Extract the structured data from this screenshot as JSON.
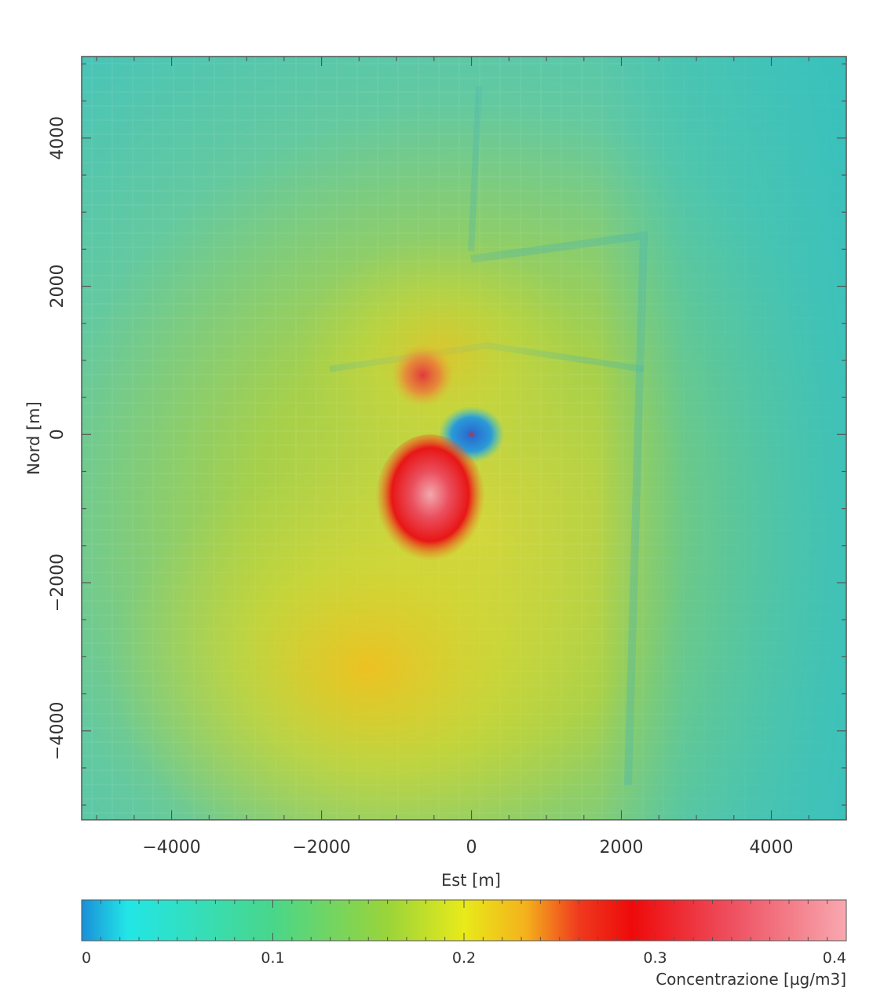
{
  "chart_data": {
    "type": "heatmap",
    "title": "",
    "xlabel": "Est [m]",
    "ylabel": "Nord [m]",
    "xlim": [
      -5200,
      5000
    ],
    "ylim": [
      -5200,
      5100
    ],
    "x_ticks": [
      -4000,
      -2000,
      0,
      2000,
      4000
    ],
    "x_tick_labels": [
      "−4000",
      "−2000",
      "0",
      "2000",
      "4000"
    ],
    "y_ticks": [
      -4000,
      -2000,
      0,
      2000,
      4000
    ],
    "y_tick_labels": [
      "−4000",
      "−2000",
      "0",
      "2000",
      "4000"
    ],
    "background": "aerial satellite photo of coastal industrial area with lagoon to the east",
    "colorbar": {
      "title": "Concentrazione [µg/m3]",
      "range": [
        0,
        0.4
      ],
      "ticks": [
        0,
        0.1,
        0.2,
        0.3,
        0.4
      ],
      "tick_labels": [
        "0",
        "0.1",
        "0.2",
        "0.3",
        "0.4"
      ],
      "colors": [
        "#1a8fd8",
        "#22e6e6",
        "#49d68a",
        "#9ad43a",
        "#e8ea1a",
        "#f4b21c",
        "#ef3a1e",
        "#ee0a0a",
        "#ee5060",
        "#f8a8b0"
      ]
    },
    "features": [
      {
        "name": "source minimum",
        "x": 0,
        "y": 0,
        "value": 0.0
      },
      {
        "name": "main maximum",
        "x": -550,
        "y": -900,
        "value": 0.4
      },
      {
        "name": "secondary maximum",
        "x": -650,
        "y": 800,
        "value": 0.3
      }
    ]
  }
}
